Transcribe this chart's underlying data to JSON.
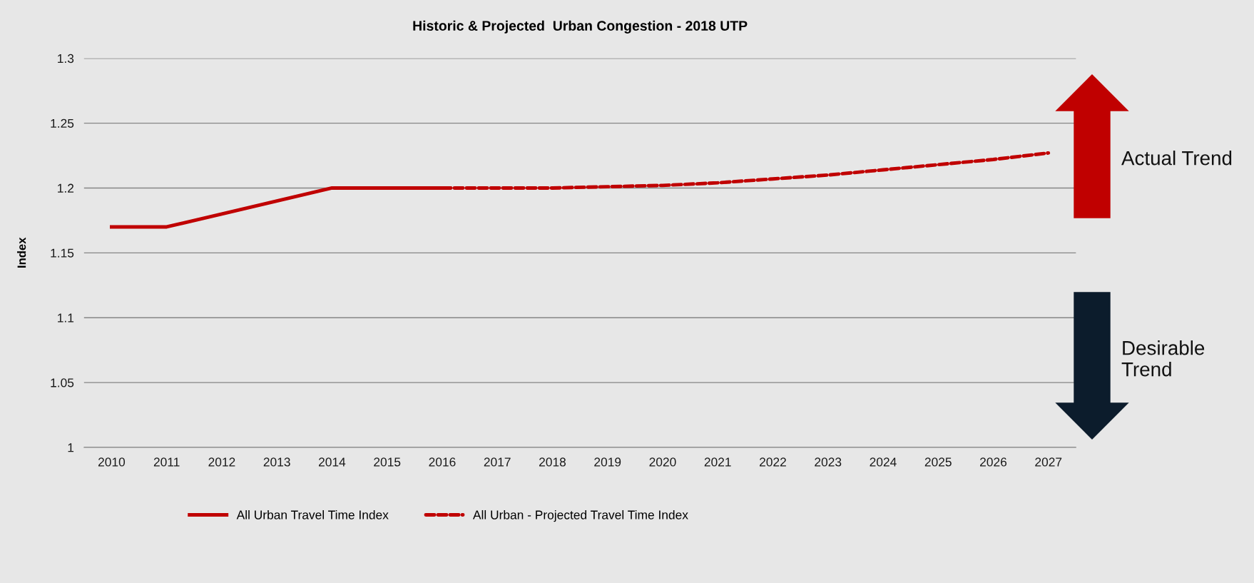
{
  "chart_data": {
    "type": "line",
    "title": "Historic & Projected  Urban Congestion - 2018 UTP",
    "ylabel": "Index",
    "categories": [
      "2010",
      "2011",
      "2012",
      "2013",
      "2014",
      "2015",
      "2016",
      "2017",
      "2018",
      "2019",
      "2020",
      "2021",
      "2022",
      "2023",
      "2024",
      "2025",
      "2026",
      "2027"
    ],
    "series": [
      {
        "name": "All Urban Travel Time Index",
        "color": "#c00000",
        "line_style": "solid",
        "values": [
          1.17,
          1.17,
          1.18,
          1.19,
          1.2,
          1.2,
          1.2,
          null,
          null,
          null,
          null,
          null,
          null,
          null,
          null,
          null,
          null,
          null
        ]
      },
      {
        "name": "All Urban - Projected Travel Time Index",
        "color": "#c00000",
        "line_style": "dashed",
        "values": [
          null,
          null,
          null,
          null,
          null,
          null,
          1.2,
          1.2,
          1.2,
          1.201,
          1.202,
          1.204,
          1.207,
          1.21,
          1.214,
          1.218,
          1.222,
          1.227
        ]
      }
    ],
    "ylim": [
      1,
      1.3
    ],
    "yticks": [
      {
        "value": 1,
        "label": "1"
      },
      1.05,
      1.1,
      1.15,
      1.2,
      1.25,
      1.3
    ],
    "grid": "y",
    "legend": "bottom",
    "annotations": [
      "Actual Trend",
      "Desirable\nTrend"
    ]
  }
}
